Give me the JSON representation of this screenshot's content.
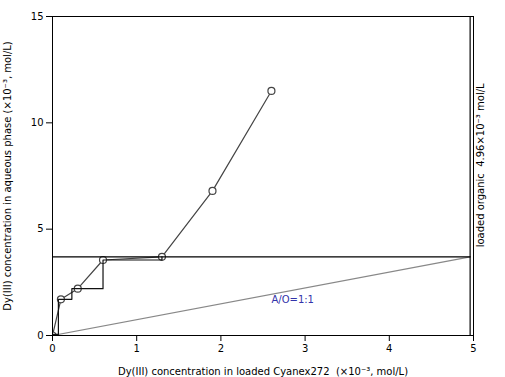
{
  "chart_data": {
    "type": "line",
    "xlabel": "Dy(III) concentration in loaded Cyanex272  (×10⁻³, mol/L)",
    "ylabel": "Dy(III) concentration in aqueous phase (×10⁻³, mol/L)",
    "xlim": [
      0,
      5
    ],
    "ylim": [
      0,
      15
    ],
    "xticks": [
      0,
      1,
      2,
      3,
      4,
      5
    ],
    "yticks": [
      0,
      5,
      10,
      15
    ],
    "grid": false,
    "series": [
      {
        "x": [
          0.0,
          0.1,
          0.3,
          0.6,
          1.3,
          1.9,
          2.6
        ],
        "values": [
          0.0,
          1.7,
          2.2,
          3.55,
          3.7,
          6.8,
          11.5
        ],
        "color": "#444444",
        "marker": "circle",
        "line_style": "solid"
      },
      {
        "x": [
          0.0,
          4.96
        ],
        "values": [
          0.0,
          3.7
        ],
        "color": "#888888",
        "line_style": "solid"
      },
      {
        "x": [
          0.0,
          0.07,
          0.07,
          0.23,
          0.23,
          0.6,
          0.6,
          1.3,
          1.3
        ],
        "values": [
          0.052,
          0.052,
          1.7,
          1.7,
          2.2,
          2.2,
          3.55,
          3.55,
          3.7
        ],
        "color": "#111111",
        "line_style": "solid"
      },
      {
        "x": [
          0.0,
          4.96
        ],
        "values": [
          3.7,
          3.7
        ],
        "color": "black",
        "line_style": "solid"
      },
      {
        "x": [
          4.96,
          4.96
        ],
        "values": [
          0,
          15
        ],
        "color": "black",
        "line_style": "solid"
      }
    ],
    "annotations": [
      {
        "text": "A/O=1:1",
        "x": 2.6,
        "y": 1.55,
        "color": "#3333aa"
      },
      {
        "text": "loaded organic  4.96×10⁻³ mol/L",
        "x": 4.96,
        "y": 8.0,
        "color": "black"
      }
    ]
  }
}
